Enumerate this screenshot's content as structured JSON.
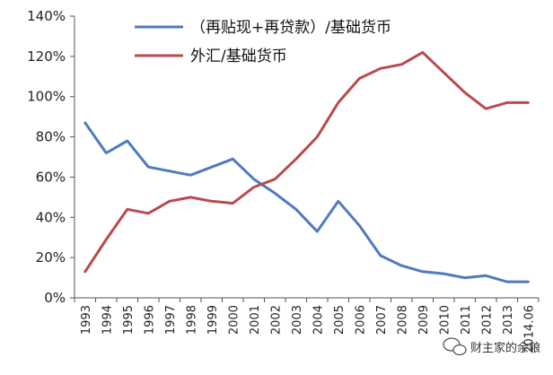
{
  "chart_data": {
    "type": "line",
    "categories": [
      "1993",
      "1994",
      "1995",
      "1996",
      "1997",
      "1998",
      "1999",
      "2000",
      "2001",
      "2002",
      "2003",
      "2004",
      "2005",
      "2006",
      "2007",
      "2008",
      "2009",
      "2010",
      "2011",
      "2012",
      "2013",
      "2014.06"
    ],
    "series": [
      {
        "name": "（再贴现+再贷款）/基础货币",
        "color": "#4f7bbd",
        "values": [
          87,
          72,
          78,
          65,
          63,
          61,
          65,
          69,
          59,
          52,
          44,
          33,
          48,
          36,
          21,
          16,
          13,
          12,
          10,
          11,
          8,
          8
        ]
      },
      {
        "name": "外汇/基础货币",
        "color": "#b94a4e",
        "values": [
          13,
          29,
          44,
          42,
          48,
          50,
          48,
          47,
          55,
          59,
          69,
          80,
          97,
          109,
          114,
          116,
          122,
          112,
          102,
          94,
          97,
          97
        ]
      }
    ],
    "y_ticks": [
      "0%",
      "20%",
      "40%",
      "60%",
      "80%",
      "100%",
      "120%",
      "140%"
    ],
    "ylim": [
      0,
      140
    ],
    "legend_position": "top-center",
    "grid": false
  },
  "watermark": {
    "text": "财主家的余粮",
    "icon": "wechat-icon"
  }
}
